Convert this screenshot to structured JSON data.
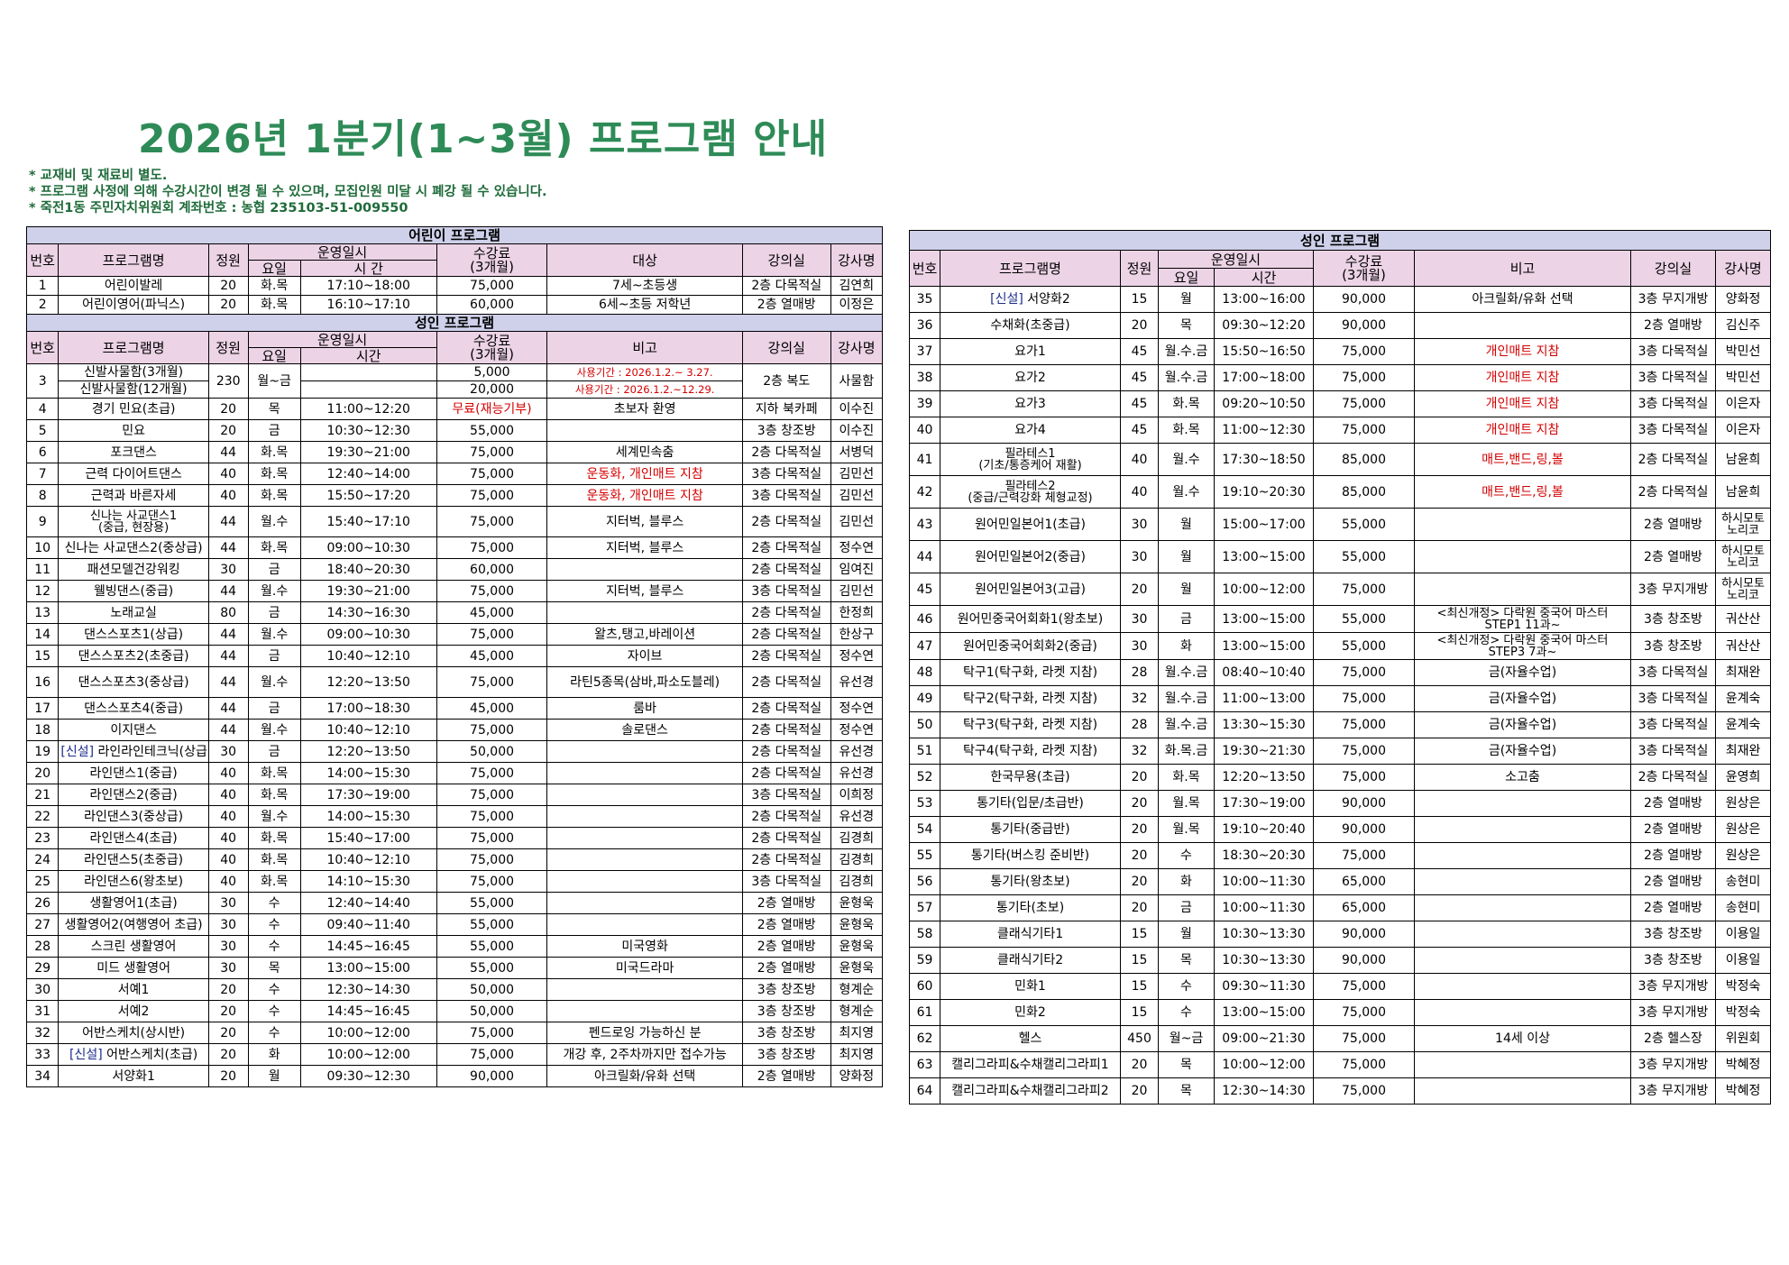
{
  "title": "2026년  1분기(1~3월)  프로그램  안내",
  "notes": [
    "*  교재비  및  재료비  별도.",
    "*  프로그램  사정에  의해  수강시간이  변경  될  수  있으며,  모집인원  미달  시  폐강  될  수  있습니다.",
    "*  죽전1동  주민자치위원회  계좌번호  :  농협  235103-51-009550"
  ],
  "headers": {
    "kids_section": "어린이  프로그램",
    "adult_section": "성인  프로그램",
    "no": "번호",
    "name": "프로그램명",
    "cap": "정원",
    "schedule": "운영일시",
    "day": "요일",
    "time": "시  간",
    "time2": "시간",
    "fee": "수강료",
    "fee_period": "(3개월)",
    "target": "대상",
    "remark": "비고",
    "room": "강의실",
    "teacher": "강사명"
  },
  "kids": [
    {
      "no": "1",
      "name": "어린이발레",
      "cap": "20",
      "day": "화.목",
      "time": "17:10~18:00",
      "fee": "75,000",
      "note": "7세~초등생",
      "room": "2층  다목적실",
      "teacher": "김연희"
    },
    {
      "no": "2",
      "name": "어린이영어(파닉스)",
      "cap": "20",
      "day": "화.목",
      "time": "16:10~17:10",
      "fee": "60,000",
      "note": "6세~초등  저학년",
      "room": "2층  열매방",
      "teacher": "이정은"
    }
  ],
  "row3": {
    "no": "3",
    "name_a": "신발사물함(3개월)",
    "name_b": "신발사물함(12개월)",
    "cap": "230",
    "day": "월~금",
    "fee_a": "5,000",
    "fee_b": "20,000",
    "note_a": "사용기간  :  2026.1.2.~  3.27.",
    "note_b": "사용기간  :  2026.1.2.~12.29.",
    "room": "2층  복도",
    "teacher": "사물함"
  },
  "adult_left": [
    {
      "no": "4",
      "name": "경기  민요(초급)",
      "cap": "20",
      "day": "목",
      "time": "11:00~12:20",
      "fee": "무료(재능기부)",
      "fee_red": true,
      "note": "초보자  환영",
      "room": "지하  북카페",
      "teacher": "이수진"
    },
    {
      "no": "5",
      "name": "민요",
      "cap": "20",
      "day": "금",
      "time": "10:30~12:30",
      "fee": "55,000",
      "note": "",
      "room": "3층  창조방",
      "teacher": "이수진"
    },
    {
      "no": "6",
      "name": "포크댄스",
      "cap": "44",
      "day": "화.목",
      "time": "19:30~21:00",
      "fee": "75,000",
      "note": "세계민속춤",
      "room": "2층  다목적실",
      "teacher": "서병덕"
    },
    {
      "no": "7",
      "name": "근력  다이어트댄스",
      "cap": "40",
      "day": "화.목",
      "time": "12:40~14:00",
      "fee": "75,000",
      "note": "운동화,  개인매트  지참",
      "note_red": true,
      "room": "3층  다목적실",
      "teacher": "김민선"
    },
    {
      "no": "8",
      "name": "근력과  바른자세",
      "cap": "40",
      "day": "화.목",
      "time": "15:50~17:20",
      "fee": "75,000",
      "note": "운동화,  개인매트  지참",
      "note_red": true,
      "room": "3층  다목적실",
      "teacher": "김민선"
    },
    {
      "no": "9",
      "name": "신나는  사교댄스1",
      "name2": "(중급,  현장용)",
      "cap": "44",
      "day": "월.수",
      "time": "15:40~17:10",
      "fee": "75,000",
      "note": "지터벅,  블루스",
      "room": "2층  다목적실",
      "teacher": "김민선"
    },
    {
      "no": "10",
      "name": "신나는  사교댄스2(중상급)",
      "cap": "44",
      "day": "화.목",
      "time": "09:00~10:30",
      "fee": "75,000",
      "note": "지터벅,  블루스",
      "room": "2층  다목적실",
      "teacher": "정수연"
    },
    {
      "no": "11",
      "name": "패션모델건강워킹",
      "cap": "30",
      "day": "금",
      "time": "18:40~20:30",
      "fee": "60,000",
      "note": "",
      "room": "2층  다목적실",
      "teacher": "임여진"
    },
    {
      "no": "12",
      "name": "웰빙댄스(중급)",
      "cap": "44",
      "day": "월.수",
      "time": "19:30~21:00",
      "fee": "75,000",
      "note": "지터벅,  블루스",
      "room": "3층  다목적실",
      "teacher": "김민선"
    },
    {
      "no": "13",
      "name": "노래교실",
      "cap": "80",
      "day": "금",
      "time": "14:30~16:30",
      "fee": "45,000",
      "note": "",
      "room": "2층  다목적실",
      "teacher": "한정희"
    },
    {
      "no": "14",
      "name": "댄스스포츠1(상급)",
      "cap": "44",
      "day": "월.수",
      "time": "09:00~10:30",
      "fee": "75,000",
      "note": "왈츠,탱고,바레이션",
      "room": "2층  다목적실",
      "teacher": "한상구"
    },
    {
      "no": "15",
      "name": "댄스스포츠2(초중급)",
      "cap": "44",
      "day": "금",
      "time": "10:40~12:10",
      "fee": "45,000",
      "note": "자이브",
      "room": "2층  다목적실",
      "teacher": "정수연"
    },
    {
      "no": "16",
      "name": "댄스스포츠3(중상급)",
      "cap": "44",
      "day": "월.수",
      "time": "12:20~13:50",
      "fee": "75,000",
      "note": "라틴5종목(삼바,파소도블레)",
      "room": "2층  다목적실",
      "teacher": "유선경"
    },
    {
      "no": "17",
      "name": "댄스스포츠4(중급)",
      "cap": "44",
      "day": "금",
      "time": "17:00~18:30",
      "fee": "45,000",
      "note": "룸바",
      "room": "2층  다목적실",
      "teacher": "정수연"
    },
    {
      "no": "18",
      "name": "이지댄스",
      "cap": "44",
      "day": "월.수",
      "time": "10:40~12:10",
      "fee": "75,000",
      "note": "솔로댄스",
      "room": "2층  다목적실",
      "teacher": "정수연"
    },
    {
      "no": "19",
      "new": "[신설]",
      "name": "  라인라인테크닉(상급)/여",
      "cap": "30",
      "day": "금",
      "time": "12:20~13:50",
      "fee": "50,000",
      "note": "",
      "room": "2층  다목적실",
      "teacher": "유선경"
    },
    {
      "no": "20",
      "name": "라인댄스1(중급)",
      "cap": "40",
      "day": "화.목",
      "time": "14:00~15:30",
      "fee": "75,000",
      "note": "",
      "room": "2층  다목적실",
      "teacher": "유선경"
    },
    {
      "no": "21",
      "name": "라인댄스2(중급)",
      "cap": "40",
      "day": "화.목",
      "time": "17:30~19:00",
      "fee": "75,000",
      "note": "",
      "room": "3층  다목적실",
      "teacher": "이희정"
    },
    {
      "no": "22",
      "name": "라인댄스3(중상급)",
      "cap": "40",
      "day": "월.수",
      "time": "14:00~15:30",
      "fee": "75,000",
      "note": "",
      "room": "2층  다목적실",
      "teacher": "유선경"
    },
    {
      "no": "23",
      "name": "라인댄스4(초급)",
      "cap": "40",
      "day": "화.목",
      "time": "15:40~17:00",
      "fee": "75,000",
      "note": "",
      "room": "2층  다목적실",
      "teacher": "김경희"
    },
    {
      "no": "24",
      "name": "라인댄스5(초중급)",
      "cap": "40",
      "day": "화.목",
      "time": "10:40~12:10",
      "fee": "75,000",
      "note": "",
      "room": "2층  다목적실",
      "teacher": "김경희"
    },
    {
      "no": "25",
      "name": "라인댄스6(왕초보)",
      "cap": "40",
      "day": "화.목",
      "time": "14:10~15:30",
      "fee": "75,000",
      "note": "",
      "room": "3층  다목적실",
      "teacher": "김경희"
    },
    {
      "no": "26",
      "name": "생활영어1(초급)",
      "cap": "30",
      "day": "수",
      "time": "12:40~14:40",
      "fee": "55,000",
      "note": "",
      "room": "2층  열매방",
      "teacher": "윤형욱"
    },
    {
      "no": "27",
      "name": "생활영어2(여행영어  초급)",
      "cap": "30",
      "day": "수",
      "time": "09:40~11:40",
      "fee": "55,000",
      "note": "",
      "room": "2층  열매방",
      "teacher": "윤형욱"
    },
    {
      "no": "28",
      "name": "스크린  생활영어",
      "cap": "30",
      "day": "수",
      "time": "14:45~16:45",
      "fee": "55,000",
      "note": "미국영화",
      "room": "2층  열매방",
      "teacher": "윤형욱"
    },
    {
      "no": "29",
      "name": "미드  생활영어",
      "cap": "30",
      "day": "목",
      "time": "13:00~15:00",
      "fee": "55,000",
      "note": "미국드라마",
      "room": "2층  열매방",
      "teacher": "윤형욱"
    },
    {
      "no": "30",
      "name": "서예1",
      "cap": "20",
      "day": "수",
      "time": "12:30~14:30",
      "fee": "50,000",
      "note": "",
      "room": "3층  창조방",
      "teacher": "형계순"
    },
    {
      "no": "31",
      "name": "서예2",
      "cap": "20",
      "day": "수",
      "time": "14:45~16:45",
      "fee": "50,000",
      "note": "",
      "room": "3층  창조방",
      "teacher": "형계순"
    },
    {
      "no": "32",
      "name": "어반스케치(상시반)",
      "cap": "20",
      "day": "수",
      "time": "10:00~12:00",
      "fee": "75,000",
      "note": "펜드로잉  가능하신  분",
      "room": "3층  창조방",
      "teacher": "최지영"
    },
    {
      "no": "33",
      "new": "[신설]",
      "name": "  어반스케치(초급)",
      "cap": "20",
      "day": "화",
      "time": "10:00~12:00",
      "fee": "75,000",
      "note": "개강  후,  2주차까지만  접수가능",
      "room": "3층  창조방",
      "teacher": "최지영"
    },
    {
      "no": "34",
      "name": "서양화1",
      "cap": "20",
      "day": "월",
      "time": "09:30~12:30",
      "fee": "90,000",
      "note": "아크릴화/유화  선택",
      "room": "2층  열매방",
      "teacher": "양화정"
    }
  ],
  "adult_right": [
    {
      "no": "35",
      "new": "[신설]",
      "name": "  서양화2",
      "cap": "15",
      "day": "월",
      "time": "13:00~16:00",
      "fee": "90,000",
      "note": "아크릴화/유화  선택",
      "room": "3층  무지개방",
      "teacher": "양화정"
    },
    {
      "no": "36",
      "name": "수채화(초중급)",
      "cap": "20",
      "day": "목",
      "time": "09:30~12:20",
      "fee": "90,000",
      "note": "",
      "room": "2층  열매방",
      "teacher": "김신주"
    },
    {
      "no": "37",
      "name": "요가1",
      "cap": "45",
      "day": "월.수.금",
      "time": "15:50~16:50",
      "fee": "75,000",
      "note": "개인매트  지참",
      "note_red": true,
      "room": "3층  다목적실",
      "teacher": "박민선"
    },
    {
      "no": "38",
      "name": "요가2",
      "cap": "45",
      "day": "월.수.금",
      "time": "17:00~18:00",
      "fee": "75,000",
      "note": "개인매트  지참",
      "note_red": true,
      "room": "3층  다목적실",
      "teacher": "박민선"
    },
    {
      "no": "39",
      "name": "요가3",
      "cap": "45",
      "day": "화.목",
      "time": "09:20~10:50",
      "fee": "75,000",
      "note": "개인매트  지참",
      "note_red": true,
      "room": "3층  다목적실",
      "teacher": "이은자"
    },
    {
      "no": "40",
      "name": "요가4",
      "cap": "45",
      "day": "화.목",
      "time": "11:00~12:30",
      "fee": "75,000",
      "note": "개인매트  지참",
      "note_red": true,
      "room": "3층  다목적실",
      "teacher": "이은자"
    },
    {
      "no": "41",
      "name": "필라테스1",
      "name2": "(기초/통증케어  재활)",
      "cap": "40",
      "day": "월.수",
      "time": "17:30~18:50",
      "fee": "85,000",
      "note": "매트,밴드,링,볼",
      "note_red": true,
      "room": "2층  다목적실",
      "teacher": "남윤희"
    },
    {
      "no": "42",
      "name": "필라테스2",
      "name2": "(중급/근력강화  체형교정)",
      "cap": "40",
      "day": "월.수",
      "time": "19:10~20:30",
      "fee": "85,000",
      "note": "매트,밴드,링,볼",
      "note_red": true,
      "room": "2층  다목적실",
      "teacher": "남윤희"
    },
    {
      "no": "43",
      "name": "원어민일본어1(초급)",
      "cap": "30",
      "day": "월",
      "time": "15:00~17:00",
      "fee": "55,000",
      "note": "",
      "room": "2층  열매방",
      "teacher": "하시모토",
      "teacher2": "노리코"
    },
    {
      "no": "44",
      "name": "원어민일본어2(중급)",
      "cap": "30",
      "day": "월",
      "time": "13:00~15:00",
      "fee": "55,000",
      "note": "",
      "room": "2층  열매방",
      "teacher": "하시모토",
      "teacher2": "노리코"
    },
    {
      "no": "45",
      "name": "원어민일본어3(고급)",
      "cap": "20",
      "day": "월",
      "time": "10:00~12:00",
      "fee": "75,000",
      "note": "",
      "room": "3층  무지개방",
      "teacher": "하시모토",
      "teacher2": "노리코"
    },
    {
      "no": "46",
      "name": "원어민중국어회화1(왕초보)",
      "cap": "30",
      "day": "금",
      "time": "13:00~15:00",
      "fee": "55,000",
      "note": "<최신개정>  다락원  중국어  마스터",
      "note2": "STEP1  11과~",
      "room": "3층  창조방",
      "teacher": "궈산산"
    },
    {
      "no": "47",
      "name": "원어민중국어회화2(중급)",
      "cap": "30",
      "day": "화",
      "time": "13:00~15:00",
      "fee": "55,000",
      "note": "<최신개정>  다락원  중국어  마스터",
      "note2": "STEP3  7과~",
      "room": "3층  창조방",
      "teacher": "궈산산"
    },
    {
      "no": "48",
      "name": "탁구1(탁구화,  라켓  지참)",
      "cap": "28",
      "day": "월.수.금",
      "time": "08:40~10:40",
      "fee": "75,000",
      "note": "금(자율수업)",
      "room": "3층  다목적실",
      "teacher": "최재완"
    },
    {
      "no": "49",
      "name": "탁구2(탁구화,  라켓  지참)",
      "cap": "32",
      "day": "월.수.금",
      "time": "11:00~13:00",
      "fee": "75,000",
      "note": "금(자율수업)",
      "room": "3층  다목적실",
      "teacher": "윤계숙"
    },
    {
      "no": "50",
      "name": "탁구3(탁구화,  라켓  지참)",
      "cap": "28",
      "day": "월.수.금",
      "time": "13:30~15:30",
      "fee": "75,000",
      "note": "금(자율수업)",
      "room": "3층  다목적실",
      "teacher": "윤계숙"
    },
    {
      "no": "51",
      "name": "탁구4(탁구화,  라켓  지참)",
      "cap": "32",
      "day": "화.목.금",
      "time": "19:30~21:30",
      "fee": "75,000",
      "note": "금(자율수업)",
      "room": "3층  다목적실",
      "teacher": "최재완"
    },
    {
      "no": "52",
      "name": "한국무용(초급)",
      "cap": "20",
      "day": "화.목",
      "time": "12:20~13:50",
      "fee": "75,000",
      "note": "소고춤",
      "room": "2층  다목적실",
      "teacher": "윤영희"
    },
    {
      "no": "53",
      "name": "통기타(입문/초급반)",
      "cap": "20",
      "day": "월.목",
      "time": "17:30~19:00",
      "fee": "90,000",
      "note": "",
      "room": "2층  열매방",
      "teacher": "원상은"
    },
    {
      "no": "54",
      "name": "통기타(중급반)",
      "cap": "20",
      "day": "월.목",
      "time": "19:10~20:40",
      "fee": "90,000",
      "note": "",
      "room": "2층  열매방",
      "teacher": "원상은"
    },
    {
      "no": "55",
      "name": "통기타(버스킹  준비반)",
      "cap": "20",
      "day": "수",
      "time": "18:30~20:30",
      "fee": "75,000",
      "note": "",
      "room": "2층  열매방",
      "teacher": "원상은"
    },
    {
      "no": "56",
      "name": "통기타(왕초보)",
      "cap": "20",
      "day": "화",
      "time": "10:00~11:30",
      "fee": "65,000",
      "note": "",
      "room": "2층  열매방",
      "teacher": "송현미"
    },
    {
      "no": "57",
      "name": "통기타(초보)",
      "cap": "20",
      "day": "금",
      "time": "10:00~11:30",
      "fee": "65,000",
      "note": "",
      "room": "2층  열매방",
      "teacher": "송현미"
    },
    {
      "no": "58",
      "name": "클래식기타1",
      "cap": "15",
      "day": "월",
      "time": "10:30~13:30",
      "fee": "90,000",
      "note": "",
      "room": "3층  창조방",
      "teacher": "이용일"
    },
    {
      "no": "59",
      "name": "클래식기타2",
      "cap": "15",
      "day": "목",
      "time": "10:30~13:30",
      "fee": "90,000",
      "note": "",
      "room": "3층  창조방",
      "teacher": "이용일"
    },
    {
      "no": "60",
      "name": "민화1",
      "cap": "15",
      "day": "수",
      "time": "09:30~11:30",
      "fee": "75,000",
      "note": "",
      "room": "3층  무지개방",
      "teacher": "박정숙"
    },
    {
      "no": "61",
      "name": "민화2",
      "cap": "15",
      "day": "수",
      "time": "13:00~15:00",
      "fee": "75,000",
      "note": "",
      "room": "3층  무지개방",
      "teacher": "박정숙"
    },
    {
      "no": "62",
      "name": "헬스",
      "cap": "450",
      "day": "월~금",
      "time": "09:00~21:30",
      "fee": "75,000",
      "note": "14세  이상",
      "room": "2층  헬스장",
      "teacher": "위원회"
    },
    {
      "no": "63",
      "name": "캘리그라피&수채캘리그라피1",
      "cap": "20",
      "day": "목",
      "time": "10:00~12:00",
      "fee": "75,000",
      "note": "",
      "room": "3층  무지개방",
      "teacher": "박혜정"
    },
    {
      "no": "64",
      "name": "캘리그라피&수채캘리그라피2",
      "cap": "20",
      "day": "목",
      "time": "12:30~14:30",
      "fee": "75,000",
      "note": "",
      "room": "3층  무지개방",
      "teacher": "박혜정"
    }
  ],
  "colors": {
    "title": "#2e8b57",
    "section_bg": "#cfd0ea",
    "header_bg": "#ecd3e6",
    "red": "#d40000",
    "new_tag": "#1b2b8c"
  }
}
